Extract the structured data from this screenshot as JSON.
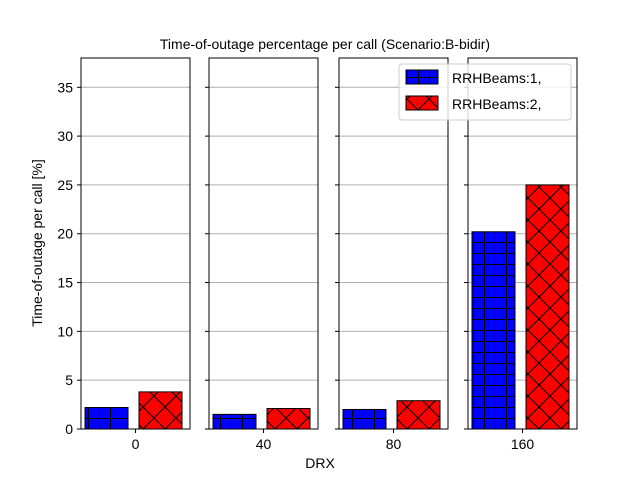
{
  "chart_data": {
    "type": "bar",
    "title": "Time-of-outage percentage per call (Scenario:B-bidir)",
    "xlabel": "DRX",
    "ylabel": "Time-of-outage per call [%]",
    "ylim": [
      0,
      38
    ],
    "yticks": [
      0,
      5,
      10,
      15,
      20,
      25,
      30,
      35
    ],
    "ytick_labels": [
      "0",
      "5",
      "10",
      "15",
      "20",
      "25",
      "30",
      "35"
    ],
    "grid": "horizontal",
    "legend_position": "top-right",
    "categories": [
      "0",
      "40",
      "80",
      "160"
    ],
    "series": [
      {
        "name": "RRHBeams:1,",
        "color": "#0000ff",
        "hatch": "grid",
        "values": [
          2.2,
          1.5,
          2.0,
          20.2
        ]
      },
      {
        "name": "RRHBeams:2,",
        "color": "#ff0000",
        "hatch": "cross",
        "values": [
          3.8,
          2.1,
          2.9,
          25.0
        ]
      }
    ]
  }
}
